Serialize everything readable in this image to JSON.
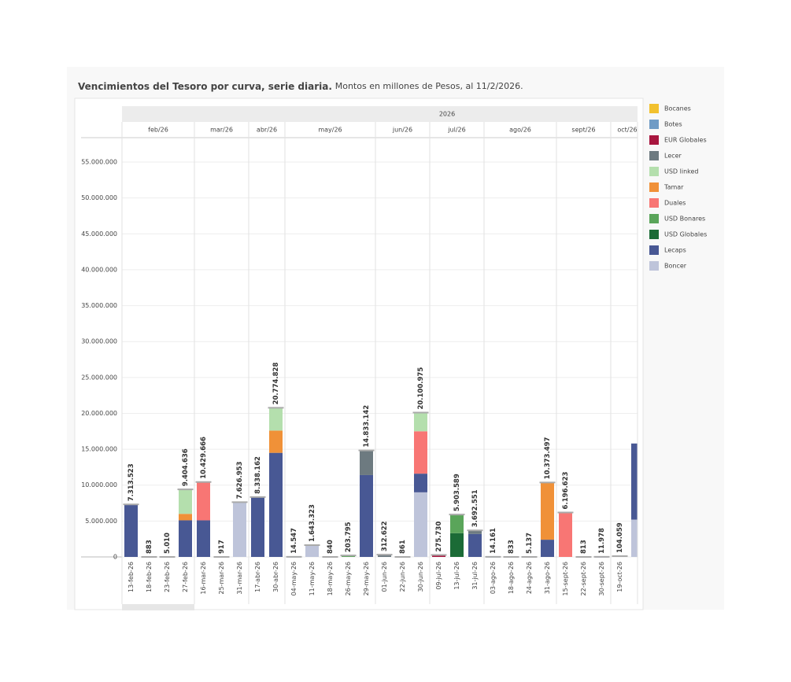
{
  "chart_data": {
    "type": "bar",
    "title": "Vencimientos del Tesoro por curva, serie diaria.",
    "subtitle": "Montos en millones de Pesos, al 11/2/2026.",
    "year": "2026",
    "months": [
      "feb/26",
      "mar/26",
      "abr/26",
      "may/26",
      "jun/26",
      "jul/26",
      "ago/26",
      "sept/26",
      "oct/26"
    ],
    "categories": [
      "13-feb-26",
      "18-feb-26",
      "23-feb-26",
      "27-feb-26",
      "16-mar-26",
      "25-mar-26",
      "31-mar-26",
      "17-abr-26",
      "30-abr-26",
      "04-may-26",
      "11-may-26",
      "18-may-26",
      "26-may-26",
      "29-may-26",
      "01-jun-26",
      "22-jun-26",
      "30-jun-26",
      "09-jul-26",
      "13-jul-26",
      "31-jul-26",
      "03-ago-26",
      "18-ago-26",
      "24-ago-26",
      "31-ago-26",
      "15-sept-26",
      "22-sept-26",
      "30-sept-26",
      "19-oct-26",
      null
    ],
    "totals": [
      7313523,
      883,
      5010,
      9404636,
      10429666,
      917,
      7626953,
      8338162,
      20774828,
      14547,
      1643323,
      840,
      203795,
      14833142,
      312622,
      861,
      20100975,
      275730,
      5903589,
      3692551,
      14161,
      833,
      5137,
      10373497,
      6196623,
      813,
      11978,
      104059,
      null
    ],
    "total_labels": [
      "7.313.523",
      "883",
      "5.010",
      "9.404.636",
      "10.429.666",
      "917",
      "7.626.953",
      "8.338.162",
      "20.774.828",
      "14.547",
      "1.643.323",
      "840",
      "203.795",
      "14.833.142",
      "312.622",
      "861",
      "20.100.975",
      "275.730",
      "5.903.589",
      "3.692.551",
      "14.161",
      "833",
      "5.137",
      "10.373.497",
      "6.196.623",
      "813",
      "11.978",
      "104.059",
      null
    ],
    "series": [
      {
        "name": "Bocanes",
        "color": "#f2c12e",
        "values": [
          null,
          null,
          null,
          null,
          null,
          null,
          null,
          null,
          null,
          null,
          null,
          null,
          null,
          null,
          null,
          null,
          null,
          null,
          null,
          null,
          null,
          null,
          null,
          null,
          null,
          null,
          null,
          null,
          null
        ]
      },
      {
        "name": "Botes",
        "color": "#6f9bc5",
        "values": [
          null,
          null,
          null,
          null,
          null,
          null,
          null,
          null,
          null,
          null,
          null,
          null,
          null,
          null,
          null,
          null,
          null,
          null,
          null,
          null,
          null,
          null,
          null,
          null,
          null,
          null,
          null,
          null,
          null
        ]
      },
      {
        "name": "EUR Globales",
        "color": "#a8163f",
        "values": [
          null,
          null,
          null,
          null,
          null,
          null,
          null,
          null,
          null,
          null,
          null,
          null,
          null,
          null,
          null,
          null,
          null,
          275730,
          null,
          null,
          null,
          null,
          null,
          null,
          null,
          null,
          null,
          null,
          null
        ]
      },
      {
        "name": "Lecer",
        "color": "#6d7a80",
        "values": [
          null,
          null,
          null,
          null,
          null,
          null,
          null,
          null,
          null,
          null,
          null,
          null,
          null,
          3433142,
          312622,
          null,
          null,
          null,
          null,
          492551,
          null,
          null,
          null,
          null,
          null,
          null,
          null,
          null,
          null
        ]
      },
      {
        "name": "USD linked",
        "color": "#b4dfad",
        "values": [
          null,
          null,
          null,
          3404636,
          null,
          null,
          null,
          null,
          3174828,
          null,
          null,
          null,
          null,
          null,
          null,
          null,
          2600975,
          null,
          null,
          null,
          null,
          null,
          null,
          null,
          null,
          null,
          null,
          null,
          null
        ]
      },
      {
        "name": "Tamar",
        "color": "#f09138",
        "values": [
          null,
          null,
          null,
          900000,
          null,
          null,
          null,
          null,
          3100000,
          null,
          null,
          null,
          null,
          null,
          null,
          null,
          null,
          null,
          null,
          null,
          null,
          null,
          null,
          7973497,
          null,
          null,
          null,
          null,
          null
        ]
      },
      {
        "name": "Duales",
        "color": "#f87674",
        "values": [
          null,
          null,
          null,
          null,
          5329666,
          null,
          null,
          null,
          null,
          null,
          null,
          null,
          null,
          null,
          null,
          null,
          5900000,
          null,
          null,
          null,
          null,
          null,
          null,
          null,
          6196623,
          null,
          null,
          null,
          null
        ]
      },
      {
        "name": "USD Bonares",
        "color": "#5aa55a",
        "values": [
          null,
          null,
          null,
          null,
          null,
          null,
          null,
          null,
          null,
          null,
          null,
          null,
          203795,
          null,
          null,
          null,
          null,
          null,
          2603589,
          null,
          null,
          null,
          null,
          null,
          null,
          null,
          null,
          null,
          null
        ]
      },
      {
        "name": "USD Globales",
        "color": "#1b6b36",
        "values": [
          null,
          null,
          null,
          null,
          null,
          null,
          null,
          null,
          null,
          null,
          null,
          null,
          null,
          null,
          null,
          null,
          null,
          null,
          3300000,
          null,
          null,
          null,
          null,
          null,
          null,
          null,
          null,
          null,
          null
        ]
      },
      {
        "name": "Lecaps",
        "color": "#485894",
        "values": [
          7313523,
          883,
          5010,
          5100000,
          5100000,
          917,
          null,
          8338162,
          14500000,
          14547,
          null,
          840,
          null,
          11400000,
          null,
          861,
          2600000,
          null,
          null,
          3200000,
          14161,
          833,
          5137,
          2400000,
          null,
          813,
          11978,
          104059,
          10600000
        ]
      },
      {
        "name": "Boncer",
        "color": "#bec4da",
        "values": [
          null,
          null,
          null,
          null,
          null,
          null,
          7626953,
          null,
          null,
          null,
          1643323,
          null,
          null,
          null,
          null,
          null,
          9000000,
          null,
          null,
          null,
          null,
          null,
          null,
          null,
          null,
          null,
          null,
          null,
          5200000
        ]
      }
    ],
    "ylim": [
      0,
      58400000
    ],
    "yticks": [
      0,
      {
        "value": 5000000,
        "label": "5.000.000"
      },
      {
        "value": 10000000,
        "label": "10.000.000"
      },
      {
        "value": 15000000,
        "label": "15.000.000"
      },
      {
        "value": 20000000,
        "label": "20.000.000"
      },
      {
        "value": 25000000,
        "label": "25.000.000"
      },
      {
        "value": 30000000,
        "label": "30.000.000"
      },
      {
        "value": 35000000,
        "label": "35.000.000"
      },
      {
        "value": 40000000,
        "label": "40.000.000"
      },
      {
        "value": 45000000,
        "label": "45.000.000"
      },
      {
        "value": 50000000,
        "label": "50.000.000"
      },
      {
        "value": 55000000,
        "label": "55.000.000"
      }
    ],
    "grid": true
  }
}
